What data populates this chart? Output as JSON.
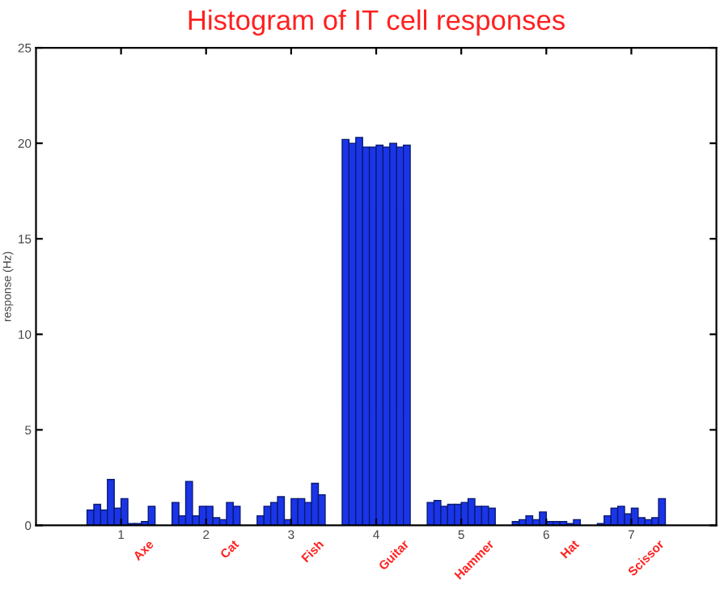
{
  "chart_data": {
    "type": "bar",
    "title": "Histogram of IT cell responses",
    "ylabel": "response (Hz)",
    "x": [
      0.64,
      0.72,
      0.8,
      0.88,
      0.96,
      1.04,
      1.12,
      1.2,
      1.28,
      1.36,
      1.64,
      1.72,
      1.8,
      1.88,
      1.96,
      2.04,
      2.12,
      2.2,
      2.28,
      2.36,
      2.64,
      2.72,
      2.8,
      2.88,
      2.96,
      3.04,
      3.12,
      3.2,
      3.28,
      3.36,
      3.64,
      3.72,
      3.8,
      3.88,
      3.96,
      4.04,
      4.12,
      4.2,
      4.28,
      4.36,
      4.64,
      4.72,
      4.8,
      4.88,
      4.96,
      5.04,
      5.12,
      5.2,
      5.28,
      5.36,
      5.64,
      5.72,
      5.8,
      5.88,
      5.96,
      6.04,
      6.12,
      6.2,
      6.28,
      6.36,
      6.64,
      6.72,
      6.8,
      6.88,
      6.96,
      7.04,
      7.12,
      7.2,
      7.28,
      7.36
    ],
    "values": [
      0.8,
      1.1,
      0.8,
      2.4,
      0.9,
      1.4,
      0.1,
      0.1,
      0.2,
      1.0,
      1.2,
      0.5,
      2.3,
      0.5,
      1.0,
      1.0,
      0.4,
      0.3,
      1.2,
      1.0,
      0.5,
      1.0,
      1.2,
      1.5,
      0.3,
      1.4,
      1.4,
      1.2,
      2.2,
      1.6,
      20.2,
      20.0,
      20.3,
      19.8,
      19.8,
      19.9,
      19.8,
      20.0,
      19.8,
      19.9,
      1.2,
      1.3,
      1.0,
      1.1,
      1.1,
      1.2,
      1.4,
      1.0,
      1.0,
      0.9,
      0.2,
      0.3,
      0.5,
      0.3,
      0.7,
      0.2,
      0.2,
      0.2,
      0.1,
      0.3,
      0.1,
      0.5,
      0.9,
      1.0,
      0.6,
      0.9,
      0.4,
      0.3,
      0.4,
      1.4
    ],
    "color": "#1a35e8",
    "xlim": [
      0,
      8
    ],
    "xticks": [
      1,
      2,
      3,
      4,
      5,
      6,
      7
    ],
    "ylim": [
      0,
      25
    ],
    "yticks": [
      0,
      5,
      10,
      15,
      20,
      25
    ],
    "grid": false,
    "annotations": [
      {
        "text": "Axe",
        "x": 1,
        "y": 0
      },
      {
        "text": "Cat",
        "x": 2,
        "y": 0
      },
      {
        "text": "Fish",
        "x": 3,
        "y": 0
      },
      {
        "text": "Guitar",
        "x": 4,
        "y": 0
      },
      {
        "text": "Hammer",
        "x": 5,
        "y": 0
      },
      {
        "text": "Hat",
        "x": 6,
        "y": 0
      },
      {
        "text": "Scissor",
        "x": 7,
        "y": 0
      }
    ]
  }
}
